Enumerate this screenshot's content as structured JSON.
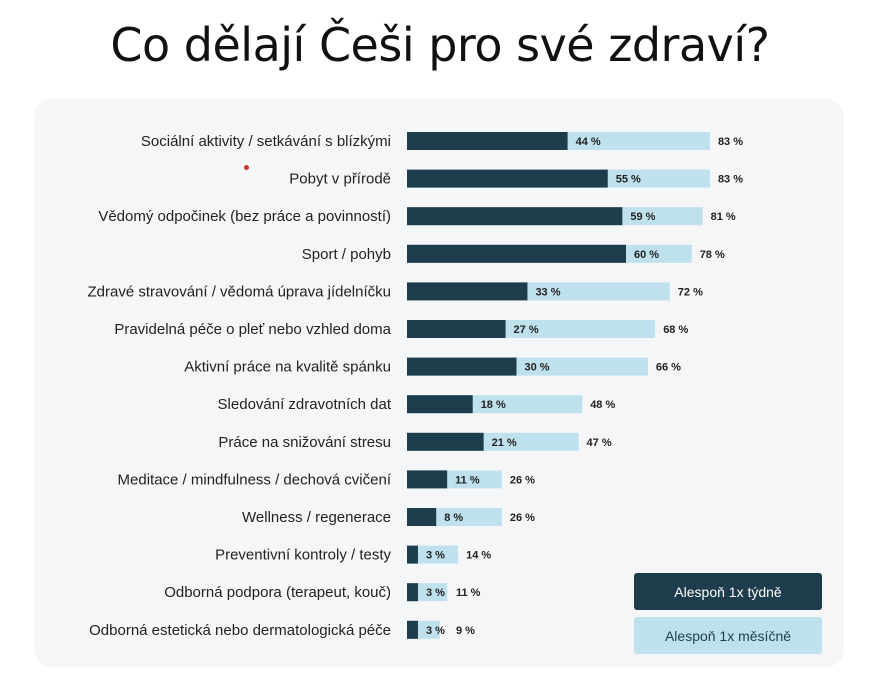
{
  "title": "Co dělají Češi pro své zdraví?",
  "colors": {
    "weekly": "#1d3d4d",
    "monthly": "#bfe1ee",
    "panel": "#f5f6f8"
  },
  "legend": {
    "weekly": "Alespoň 1x týdně",
    "monthly": "Alespoň 1x měsíčně"
  },
  "chart_data": {
    "type": "bar",
    "orientation": "horizontal",
    "title": "Co dělají Češi pro své zdraví?",
    "categories": [
      "Sociální aktivity / setkávání s blízkými",
      "Pobyt v přírodě",
      "Vědomý odpočinek (bez práce a povinností)",
      "Sport / pohyb",
      "Zdravé stravování / vědomá úprava jídelníčku",
      "Pravidelná péče o pleť nebo vzhled doma",
      "Aktivní práce na kvalitě spánku",
      "Sledování zdravotních dat",
      "Práce na snižování stresu",
      "Meditace / mindfulness / dechová cvičení",
      "Wellness / regenerace",
      "Preventivní kontroly / testy",
      "Odborná podpora (terapeut, kouč)",
      "Odborná estetická nebo dermatologická péče"
    ],
    "series": [
      {
        "name": "Alespoň 1x týdně",
        "values": [
          44,
          55,
          59,
          60,
          33,
          27,
          30,
          18,
          21,
          11,
          8,
          3,
          3,
          3
        ],
        "labels": [
          "44 %",
          "55 %",
          "59 %",
          "60 %",
          "33 %",
          "27 %",
          "30 %",
          "18 %",
          "21 %",
          "11 %",
          "8 %",
          "3 %",
          "3 %",
          "3 %"
        ]
      },
      {
        "name": "Alespoň 1x měsíčně",
        "values": [
          83,
          83,
          81,
          78,
          72,
          68,
          66,
          48,
          47,
          26,
          26,
          14,
          11,
          9
        ],
        "labels": [
          "83 %",
          "83 %",
          "81 %",
          "78 %",
          "72 %",
          "68 %",
          "66 %",
          "48 %",
          "47 %",
          "26 %",
          "26 %",
          "14 %",
          "11 %",
          "9 %"
        ]
      }
    ],
    "xlim": [
      0,
      100
    ],
    "grid": false,
    "legend_position": "bottom-right",
    "overlaid_bars": true
  }
}
